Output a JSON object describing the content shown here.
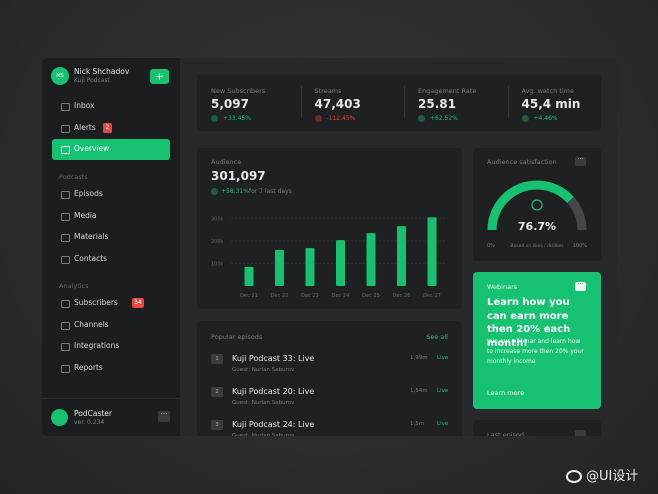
{
  "sidebar": {
    "user": {
      "initials": "NS",
      "name": "Nick Shchadov",
      "subtitle": "Kuji Podcast"
    },
    "nav": [
      {
        "label": "Inbox"
      },
      {
        "label": "Alerts",
        "badge": "2"
      },
      {
        "label": "Overview"
      }
    ],
    "sections": [
      {
        "title": "Podcasts",
        "items": [
          {
            "label": "Episods"
          },
          {
            "label": "Media"
          },
          {
            "label": "Materials"
          },
          {
            "label": "Contacts"
          }
        ]
      },
      {
        "title": "Analytics",
        "items": [
          {
            "label": "Subscribers",
            "badge": "34"
          },
          {
            "label": "Channels"
          },
          {
            "label": "Integrations"
          },
          {
            "label": "Reports"
          }
        ]
      }
    ],
    "footer": {
      "name": "PodCaster",
      "version": "ver. 0.234"
    }
  },
  "stats": [
    {
      "label": "New Subscribers",
      "value": "5,097",
      "change": "+33.45%"
    },
    {
      "label": "Streams",
      "value": "47,403",
      "change": "-112.45%"
    },
    {
      "label": "Engagement Rate",
      "value": "25.81",
      "change": "+62.52%"
    },
    {
      "label": "Avg. watch time",
      "value": "45,4 min",
      "change": "+4.46%"
    }
  ],
  "audience": {
    "value": "301,097",
    "change": "+58.31%",
    "note": "for 7 last days"
  },
  "chart_data": {
    "type": "bar",
    "title": "Audience",
    "categories": [
      "Dec 21",
      "Dec 22",
      "Dec 23",
      "Dec 24",
      "Dec 25",
      "Dec 26",
      "Dec 27"
    ],
    "values": [
      85000,
      160000,
      168000,
      203000,
      234000,
      265000,
      304000
    ],
    "color": "#16c172",
    "ylim": [
      0,
      350000
    ],
    "yticks": [
      {
        "value": 100000,
        "label": "100k"
      },
      {
        "value": 200000,
        "label": "200k"
      },
      {
        "value": 300000,
        "label": "300k"
      }
    ],
    "grid": true
  },
  "satisfaction": {
    "title": "Audience satisfaction",
    "value": 76.7,
    "value_label": "76.7%",
    "min": {
      "value": 0,
      "label": "0%"
    },
    "max": {
      "value": 100,
      "label": "100%"
    },
    "note": "Based on likes / dislikes"
  },
  "webinars": {
    "title": "Webinars",
    "heading": "Learn how you can earn more then 20% each month!",
    "body": "Join our webinar and learn how to increase more then 20% your monthly income",
    "link": "Learn more"
  },
  "episodes": {
    "title": "Popular episods",
    "link": "See all",
    "rows": [
      {
        "number": "1",
        "title": "Kuji Podcast 33: Live",
        "guest": "Guest: Nurlan Saburov",
        "count": "1,99m",
        "status": "Live"
      },
      {
        "number": "2",
        "title": "Kuji Podcast 20: Live",
        "guest": "Guest: Nurlan Saburov",
        "count": "1,54m",
        "status": "Live"
      },
      {
        "number": "3",
        "title": "Kuji Podcast 24: Live",
        "guest": "Guest: Nurlan Saburov",
        "count": "1,5m",
        "status": "Live"
      }
    ]
  },
  "last_episode": {
    "title": "Last episod"
  },
  "watermark": "@UI设计"
}
